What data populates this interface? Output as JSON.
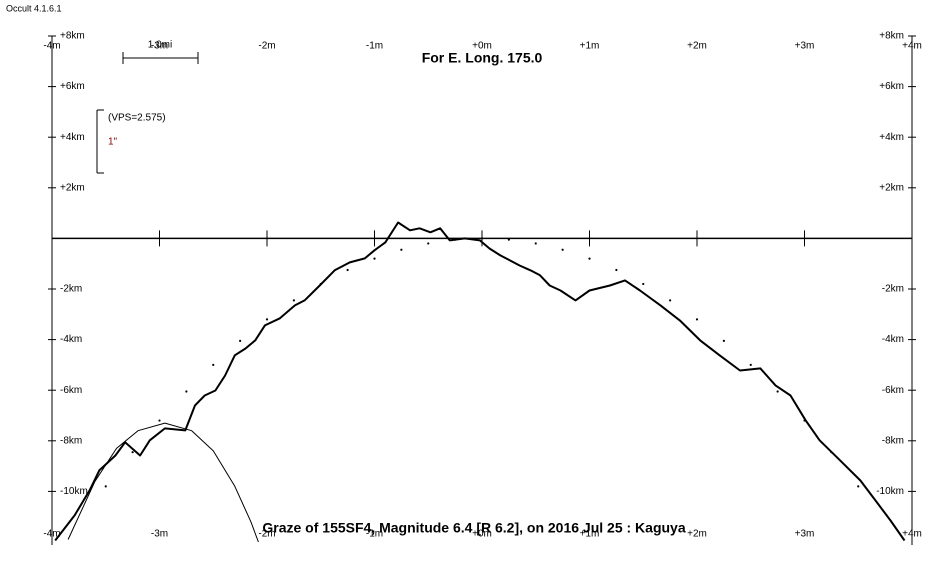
{
  "window_title": "Occult 4.1.6.1",
  "chart_data": {
    "type": "line",
    "subtitle": "For E. Long. 175.0",
    "title": "Graze of  155SF4,  Magnitude 6.4 [R 6.2],  on 2016 Jul 25  :  Kaguya",
    "annotations": [
      "1.0mi",
      "(VPS=2.575)",
      "1\""
    ],
    "xlim": [
      -4,
      4
    ],
    "ylim": [
      -12,
      8
    ],
    "xticks": [
      {
        "value": -4,
        "label": "-4m"
      },
      {
        "value": -3,
        "label": "-3m"
      },
      {
        "value": -2,
        "label": "-2m"
      },
      {
        "value": -1,
        "label": "-1m"
      },
      {
        "value": 0,
        "label": "+0m"
      },
      {
        "value": 1,
        "label": "+1m"
      },
      {
        "value": 2,
        "label": "+2m"
      },
      {
        "value": 3,
        "label": "+3m"
      },
      {
        "value": 4,
        "label": "+4m"
      }
    ],
    "yticks": [
      {
        "value": 8,
        "label": "+8km"
      },
      {
        "value": 6,
        "label": "+6km"
      },
      {
        "value": 4,
        "label": "+4km"
      },
      {
        "value": 2,
        "label": "+2km"
      },
      {
        "value": -2,
        "label": "-2km"
      },
      {
        "value": -4,
        "label": "-4km"
      },
      {
        "value": -6,
        "label": "-6km"
      },
      {
        "value": -8,
        "label": "-8km"
      },
      {
        "value": -10,
        "label": "-10km"
      }
    ],
    "series": [
      {
        "color": "#000000",
        "style": "line",
        "width": 2,
        "x": [
          -3.97,
          -3.79,
          -3.65,
          -3.56,
          -3.41,
          -3.32,
          -3.18,
          -3.09,
          -2.95,
          -2.76,
          -2.67,
          -2.58,
          -2.48,
          -2.39,
          -2.3,
          -2.2,
          -2.11,
          -2.02,
          -1.88,
          -1.74,
          -1.65,
          -1.51,
          -1.37,
          -1.23,
          -1.09,
          -1.0,
          -0.9,
          -0.78,
          -0.67,
          -0.58,
          -0.48,
          -0.39,
          -0.3,
          -0.16,
          -0.02,
          0.07,
          0.17,
          0.26,
          0.35,
          0.45,
          0.54,
          0.63,
          0.73,
          0.87,
          1.0,
          1.19,
          1.33,
          1.47,
          1.66,
          1.84,
          2.03,
          2.21,
          2.4,
          2.59,
          2.73,
          2.87,
          3.01,
          3.14,
          3.33,
          3.52,
          3.66,
          3.8,
          3.93
        ],
        "values": [
          -11.94,
          -10.95,
          -9.96,
          -9.17,
          -8.58,
          -8.06,
          -8.58,
          -7.98,
          -7.51,
          -7.59,
          -6.6,
          -6.21,
          -6.01,
          -5.42,
          -4.62,
          -4.35,
          -4.03,
          -3.44,
          -3.16,
          -2.65,
          -2.45,
          -1.86,
          -1.26,
          -0.95,
          -0.79,
          -0.47,
          -0.16,
          0.63,
          0.32,
          0.4,
          0.24,
          0.4,
          -0.08,
          0,
          -0.08,
          -0.4,
          -0.67,
          -0.87,
          -1.07,
          -1.26,
          -1.46,
          -1.86,
          -2.06,
          -2.45,
          -2.06,
          -1.86,
          -1.66,
          -2.06,
          -2.65,
          -3.24,
          -4.03,
          -4.62,
          -5.22,
          -5.14,
          -5.81,
          -6.21,
          -7.19,
          -7.98,
          -8.77,
          -9.57,
          -10.36,
          -11.15,
          -11.94
        ]
      },
      {
        "color": "#000000",
        "style": "dots",
        "x": [
          -3.5,
          -3.25,
          -3,
          -2.75,
          -2.5,
          -2.25,
          -2,
          -1.75,
          -1.5,
          -1.25,
          -1,
          -0.75,
          -0.5,
          -0.25,
          0,
          0.25,
          0.5,
          0.75,
          1,
          1.25,
          1.5,
          1.75,
          2,
          2.25,
          2.5,
          2.75,
          3,
          3.25,
          3.5
        ],
        "values": [
          -9.8,
          -8.45,
          -7.2,
          -6.05,
          -5,
          -4.05,
          -3.2,
          -2.45,
          -1.8,
          -1.25,
          -0.8,
          -0.45,
          -0.2,
          -0.05,
          0,
          -0.05,
          -0.2,
          -0.45,
          -0.8,
          -1.25,
          -1.8,
          -2.45,
          -3.2,
          -4.05,
          -5,
          -6.05,
          -7.2,
          -8.45,
          -9.8
        ]
      },
      {
        "color": "#000000",
        "style": "line",
        "width": 1,
        "x": [
          -3.85,
          -3.6,
          -3.4,
          -3.2,
          -2.95,
          -2.7,
          -2.5,
          -2.3,
          -2.15,
          -2.08
        ],
        "values": [
          -11.9,
          -9.6,
          -8.3,
          -7.6,
          -7.3,
          -7.6,
          -8.4,
          -9.8,
          -11.2,
          -12
        ]
      }
    ]
  }
}
